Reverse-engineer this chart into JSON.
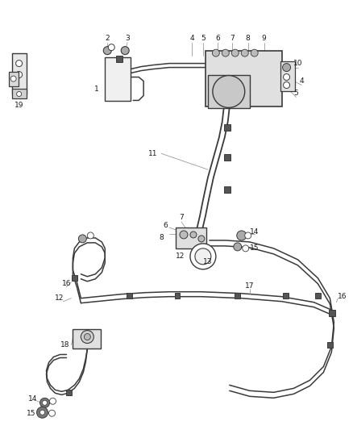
{
  "background_color": "#ffffff",
  "line_color": "#3a3a3a",
  "label_color": "#1a1a1a",
  "fig_width": 4.38,
  "fig_height": 5.33,
  "dpi": 100
}
